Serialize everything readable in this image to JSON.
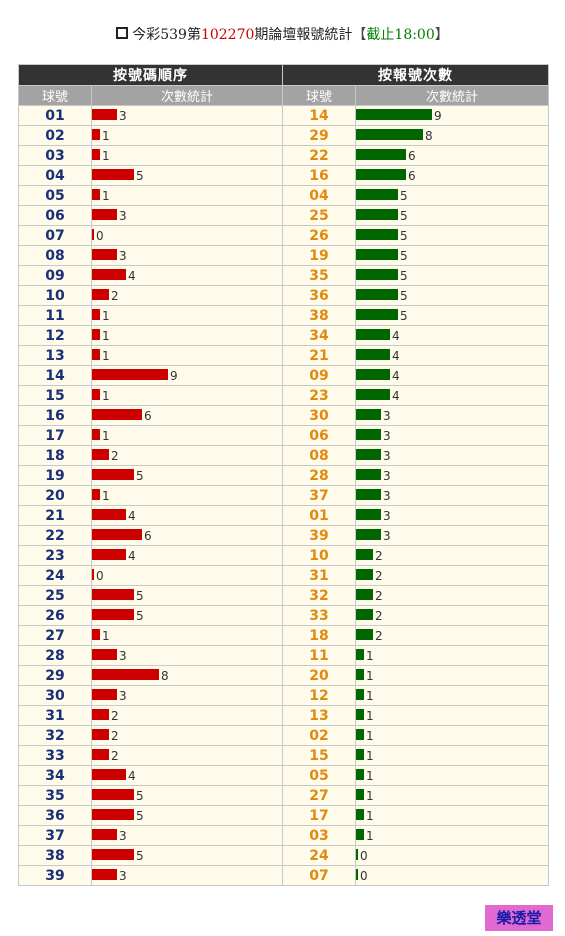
{
  "header": {
    "prefix": "今彩539第",
    "period": "102270",
    "suffix": "期論壇報號統計",
    "open_bracket": "【",
    "cutoff": "截止18:00",
    "close_bracket": "】"
  },
  "table": {
    "left_title": "按號碼順序",
    "right_title": "按報號次數",
    "col_number": "球號",
    "col_stats": "次數統計",
    "col_number_r": "球號",
    "col_stats_r": "次數統計"
  },
  "colors": {
    "left_bar": "#cc0000",
    "right_bar": "#006600"
  },
  "rows": [
    {
      "l_num": "01",
      "l_val": 3,
      "r_num": "14",
      "r_val": 9
    },
    {
      "l_num": "02",
      "l_val": 1,
      "r_num": "29",
      "r_val": 8
    },
    {
      "l_num": "03",
      "l_val": 1,
      "r_num": "22",
      "r_val": 6
    },
    {
      "l_num": "04",
      "l_val": 5,
      "r_num": "16",
      "r_val": 6
    },
    {
      "l_num": "05",
      "l_val": 1,
      "r_num": "04",
      "r_val": 5
    },
    {
      "l_num": "06",
      "l_val": 3,
      "r_num": "25",
      "r_val": 5
    },
    {
      "l_num": "07",
      "l_val": 0,
      "r_num": "26",
      "r_val": 5
    },
    {
      "l_num": "08",
      "l_val": 3,
      "r_num": "19",
      "r_val": 5
    },
    {
      "l_num": "09",
      "l_val": 4,
      "r_num": "35",
      "r_val": 5
    },
    {
      "l_num": "10",
      "l_val": 2,
      "r_num": "36",
      "r_val": 5
    },
    {
      "l_num": "11",
      "l_val": 1,
      "r_num": "38",
      "r_val": 5
    },
    {
      "l_num": "12",
      "l_val": 1,
      "r_num": "34",
      "r_val": 4
    },
    {
      "l_num": "13",
      "l_val": 1,
      "r_num": "21",
      "r_val": 4
    },
    {
      "l_num": "14",
      "l_val": 9,
      "r_num": "09",
      "r_val": 4
    },
    {
      "l_num": "15",
      "l_val": 1,
      "r_num": "23",
      "r_val": 4
    },
    {
      "l_num": "16",
      "l_val": 6,
      "r_num": "30",
      "r_val": 3
    },
    {
      "l_num": "17",
      "l_val": 1,
      "r_num": "06",
      "r_val": 3
    },
    {
      "l_num": "18",
      "l_val": 2,
      "r_num": "08",
      "r_val": 3
    },
    {
      "l_num": "19",
      "l_val": 5,
      "r_num": "28",
      "r_val": 3
    },
    {
      "l_num": "20",
      "l_val": 1,
      "r_num": "37",
      "r_val": 3
    },
    {
      "l_num": "21",
      "l_val": 4,
      "r_num": "01",
      "r_val": 3
    },
    {
      "l_num": "22",
      "l_val": 6,
      "r_num": "39",
      "r_val": 3
    },
    {
      "l_num": "23",
      "l_val": 4,
      "r_num": "10",
      "r_val": 2
    },
    {
      "l_num": "24",
      "l_val": 0,
      "r_num": "31",
      "r_val": 2
    },
    {
      "l_num": "25",
      "l_val": 5,
      "r_num": "32",
      "r_val": 2
    },
    {
      "l_num": "26",
      "l_val": 5,
      "r_num": "33",
      "r_val": 2
    },
    {
      "l_num": "27",
      "l_val": 1,
      "r_num": "18",
      "r_val": 2
    },
    {
      "l_num": "28",
      "l_val": 3,
      "r_num": "11",
      "r_val": 1
    },
    {
      "l_num": "29",
      "l_val": 8,
      "r_num": "20",
      "r_val": 1
    },
    {
      "l_num": "30",
      "l_val": 3,
      "r_num": "12",
      "r_val": 1
    },
    {
      "l_num": "31",
      "l_val": 2,
      "r_num": "13",
      "r_val": 1
    },
    {
      "l_num": "32",
      "l_val": 2,
      "r_num": "02",
      "r_val": 1
    },
    {
      "l_num": "33",
      "l_val": 2,
      "r_num": "15",
      "r_val": 1
    },
    {
      "l_num": "34",
      "l_val": 4,
      "r_num": "05",
      "r_val": 1
    },
    {
      "l_num": "35",
      "l_val": 5,
      "r_num": "27",
      "r_val": 1
    },
    {
      "l_num": "36",
      "l_val": 5,
      "r_num": "17",
      "r_val": 1
    },
    {
      "l_num": "37",
      "l_val": 3,
      "r_num": "03",
      "r_val": 1
    },
    {
      "l_num": "38",
      "l_val": 5,
      "r_num": "24",
      "r_val": 0
    },
    {
      "l_num": "39",
      "l_val": 3,
      "r_num": "07",
      "r_val": 0
    }
  ],
  "logo": "樂透堂"
}
